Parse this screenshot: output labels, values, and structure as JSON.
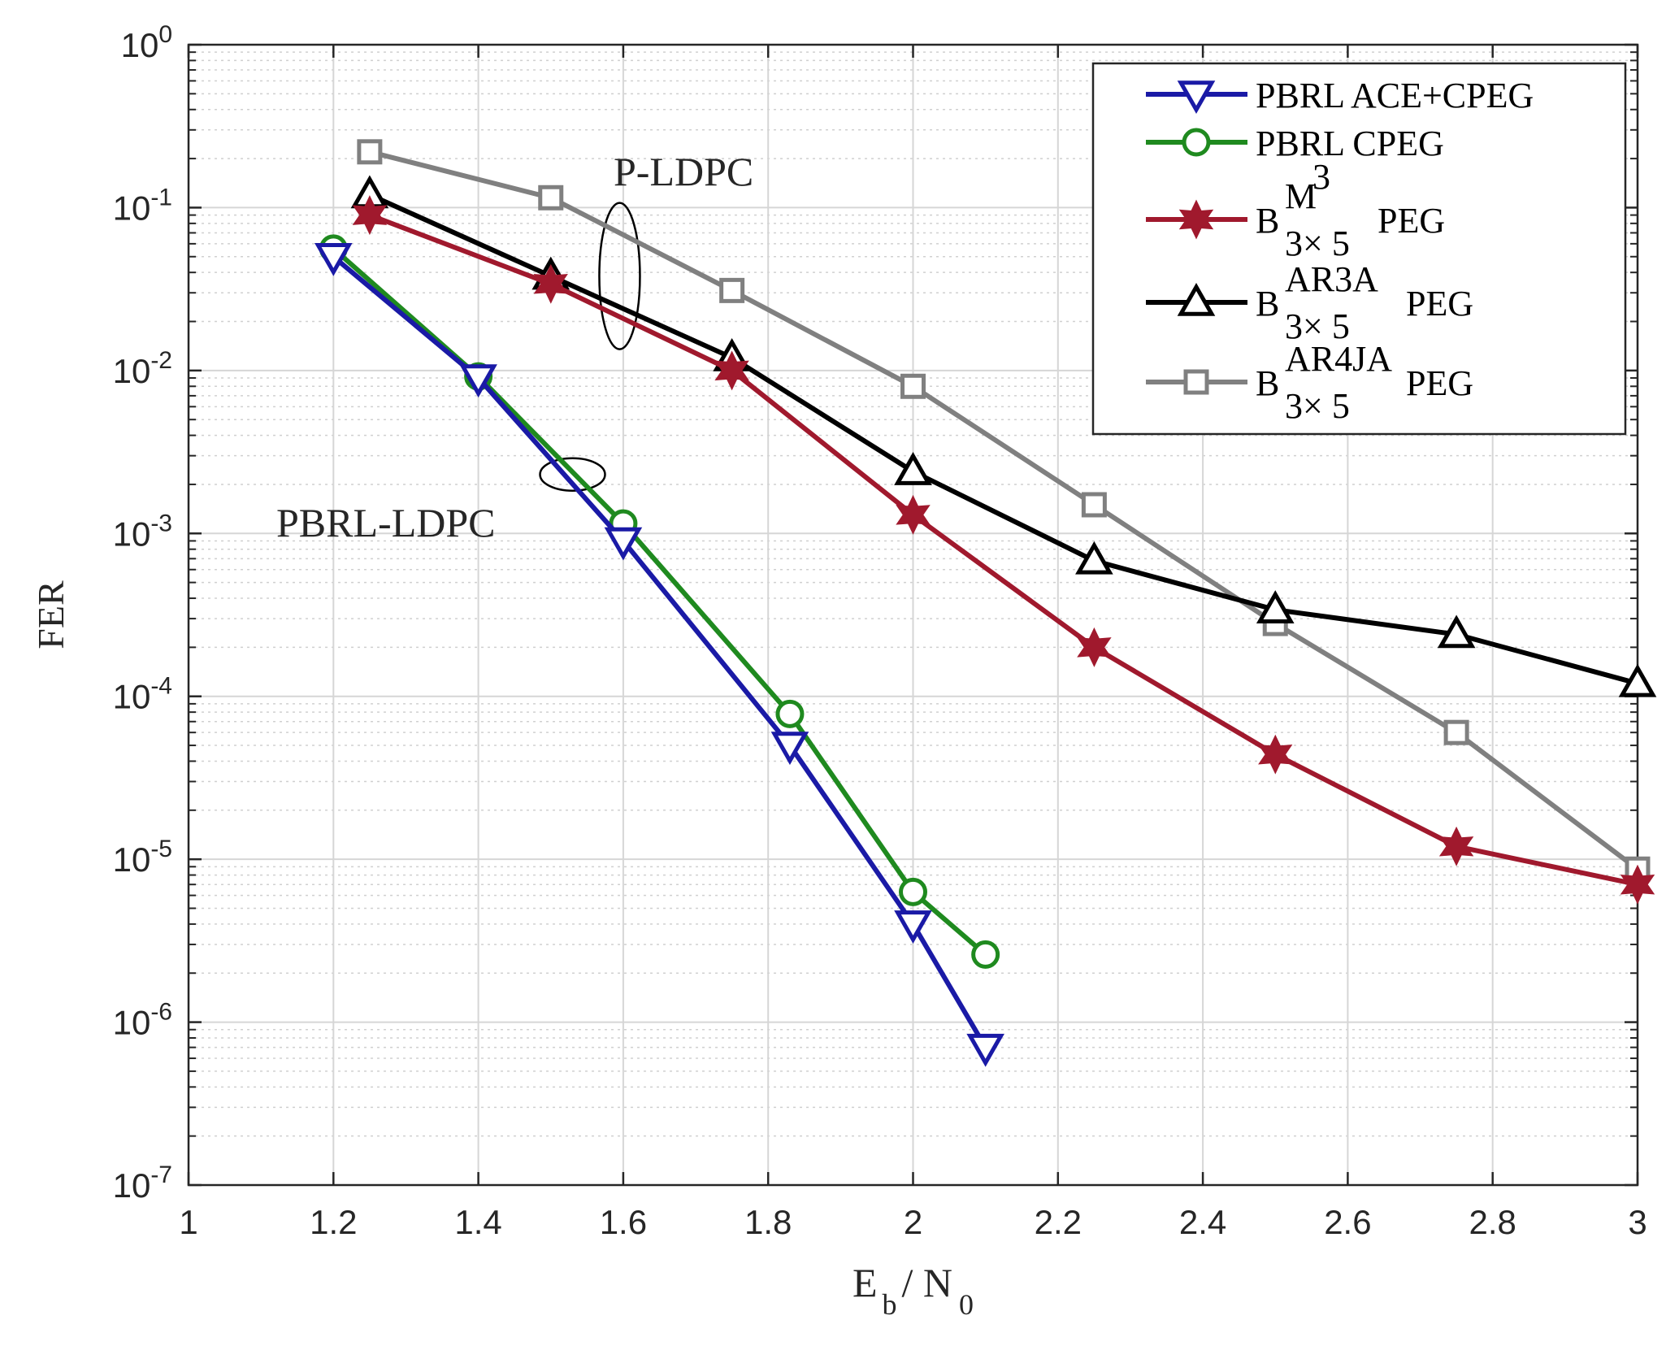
{
  "chart_data": {
    "type": "line",
    "title": "",
    "xlabel": {
      "main": "E",
      "sub1": "b",
      "slash": "/ N",
      "sub2": "0"
    },
    "ylabel": "FER",
    "xlim": [
      1,
      3
    ],
    "ylim_exp": [
      -7,
      0
    ],
    "yscale": "log",
    "grid": true,
    "legend_position": "top-right",
    "x_ticks": [
      "1",
      "1.2",
      "1.4",
      "1.6",
      "1.8",
      "2",
      "2.2",
      "2.4",
      "2.6",
      "2.8",
      "3"
    ],
    "y_ticks": [
      {
        "base": "10",
        "exp": "0"
      },
      {
        "base": "10",
        "exp": "-1"
      },
      {
        "base": "10",
        "exp": "-2"
      },
      {
        "base": "10",
        "exp": "-3"
      },
      {
        "base": "10",
        "exp": "-4"
      },
      {
        "base": "10",
        "exp": "-5"
      },
      {
        "base": "10",
        "exp": "-6"
      },
      {
        "base": "10",
        "exp": "-7"
      }
    ],
    "series": [
      {
        "name": "PBRL ACE+CPEG",
        "color": "#1a1aa6",
        "marker": "triangle-down",
        "x": [
          1.2,
          1.4,
          1.6,
          1.83,
          2.0,
          2.1
        ],
        "y": [
          0.05,
          0.009,
          0.0009,
          5e-05,
          4e-06,
          7e-07
        ]
      },
      {
        "name": "PBRL CPEG",
        "color": "#1f8a1f",
        "marker": "circle",
        "x": [
          1.2,
          1.4,
          1.6,
          1.83,
          2.0,
          2.1
        ],
        "y": [
          0.056,
          0.0092,
          0.00115,
          7.8e-05,
          6.3e-06,
          2.6e-06
        ]
      },
      {
        "name_parts": {
          "base": "B",
          "sup": "M",
          "supsup": "3",
          "sub": "3× 5",
          "suffix": "PEG"
        },
        "color": "#a0192d",
        "marker": "hexagram",
        "x": [
          1.25,
          1.5,
          1.75,
          2.0,
          2.25,
          2.5,
          2.75,
          3.0
        ],
        "y": [
          0.09,
          0.034,
          0.01,
          0.0013,
          0.0002,
          4.4e-05,
          1.2e-05,
          7e-06
        ]
      },
      {
        "name_parts": {
          "base": "B",
          "sup": "AR3A",
          "sub": "3× 5",
          "suffix": "PEG"
        },
        "color": "#000000",
        "marker": "triangle-up",
        "x": [
          1.25,
          1.5,
          1.75,
          2.0,
          2.25,
          2.5,
          2.75,
          3.0
        ],
        "y": [
          0.12,
          0.038,
          0.012,
          0.0024,
          0.00068,
          0.00034,
          0.00024,
          0.00012
        ]
      },
      {
        "name_parts": {
          "base": "B",
          "sup": "AR4JA",
          "sub": "3× 5",
          "suffix": "PEG"
        },
        "color": "#808080",
        "marker": "square",
        "x": [
          1.25,
          1.5,
          1.75,
          2.0,
          2.25,
          2.5,
          2.75,
          3.0
        ],
        "y": [
          0.22,
          0.115,
          0.031,
          0.008,
          0.0015,
          0.00028,
          6e-05,
          8.7e-06
        ]
      }
    ],
    "annotations": [
      {
        "text": "P-LDPC",
        "ellipse_center": {
          "x": 1.595,
          "y": 0.038
        }
      },
      {
        "text": "PBRL-LDPC",
        "ellipse_center": {
          "x": 1.53,
          "y": 0.0023
        }
      }
    ]
  }
}
